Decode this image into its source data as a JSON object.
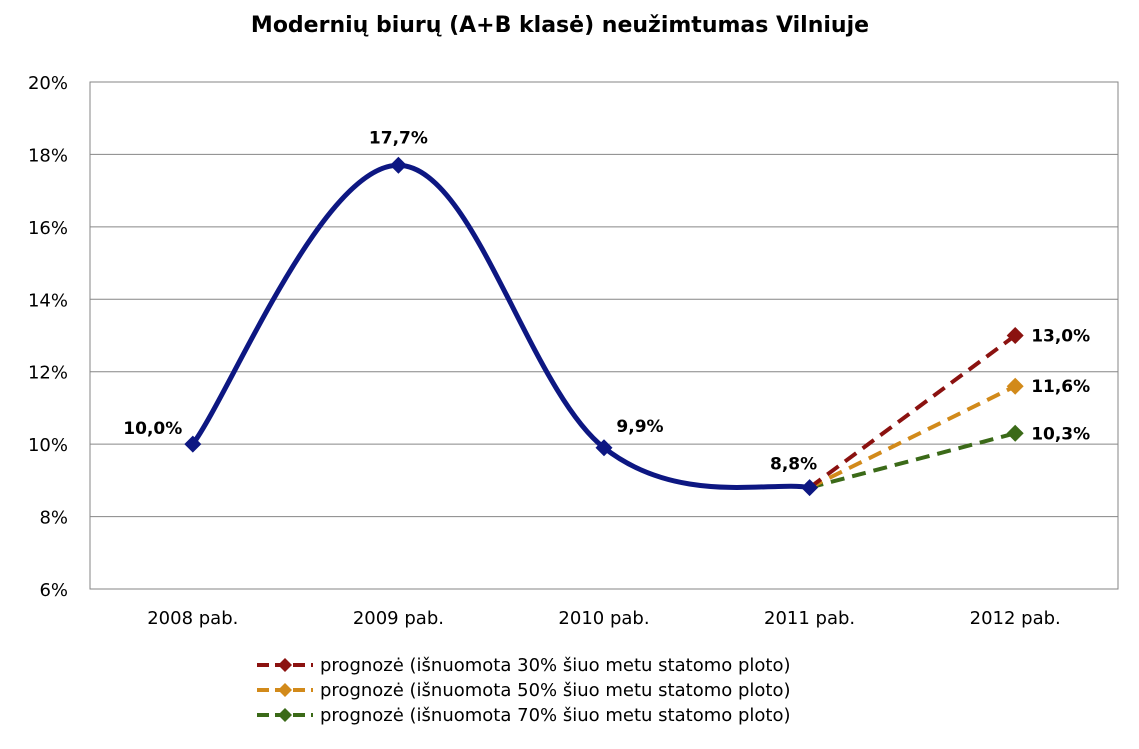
{
  "chart_data": {
    "type": "line",
    "title": "Modernių biurų (A+B klasė) neužimtumas Vilniuje",
    "xlabel": "",
    "ylabel": "",
    "categories": [
      "2008 pab.",
      "2009 pab.",
      "2010 pab.",
      "2011 pab.",
      "2012 pab."
    ],
    "ylim": [
      6,
      20
    ],
    "y_ticks": [
      6,
      8,
      10,
      12,
      14,
      16,
      18,
      20
    ],
    "y_tick_labels": [
      "6%",
      "8%",
      "10%",
      "12%",
      "14%",
      "16%",
      "18%",
      "20%"
    ],
    "grid": true,
    "legend_position": "bottom",
    "series": [
      {
        "key": "actual",
        "values": [
          10.0,
          17.7,
          9.9,
          8.8,
          null
        ],
        "labels": [
          "10,0%",
          "17,7%",
          "9,9%",
          "8,8%",
          ""
        ],
        "color": "#0d1782",
        "style": "solid-smooth",
        "marker": "diamond",
        "in_legend": false
      },
      {
        "key": "forecast30",
        "name": "prognozė (išnuomota 30% šiuo metu statomo ploto)",
        "values": [
          null,
          null,
          null,
          8.8,
          13.0
        ],
        "labels": [
          "",
          "",
          "",
          "",
          "13,0%"
        ],
        "color": "#8b1210",
        "style": "dashed",
        "marker": "diamond",
        "in_legend": true
      },
      {
        "key": "forecast50",
        "name": "prognozė (išnuomota 50% šiuo metu statomo ploto)",
        "values": [
          null,
          null,
          null,
          8.8,
          11.6
        ],
        "labels": [
          "",
          "",
          "",
          "",
          "11,6%"
        ],
        "color": "#d28a1a",
        "style": "dashed",
        "marker": "diamond",
        "in_legend": true
      },
      {
        "key": "forecast70",
        "name": "prognozė (išnuomota 70% šiuo metu statomo ploto)",
        "values": [
          null,
          null,
          null,
          8.8,
          10.3
        ],
        "labels": [
          "",
          "",
          "",
          "",
          "10,3%"
        ],
        "color": "#3b6a18",
        "style": "dashed",
        "marker": "diamond",
        "in_legend": true
      }
    ]
  }
}
